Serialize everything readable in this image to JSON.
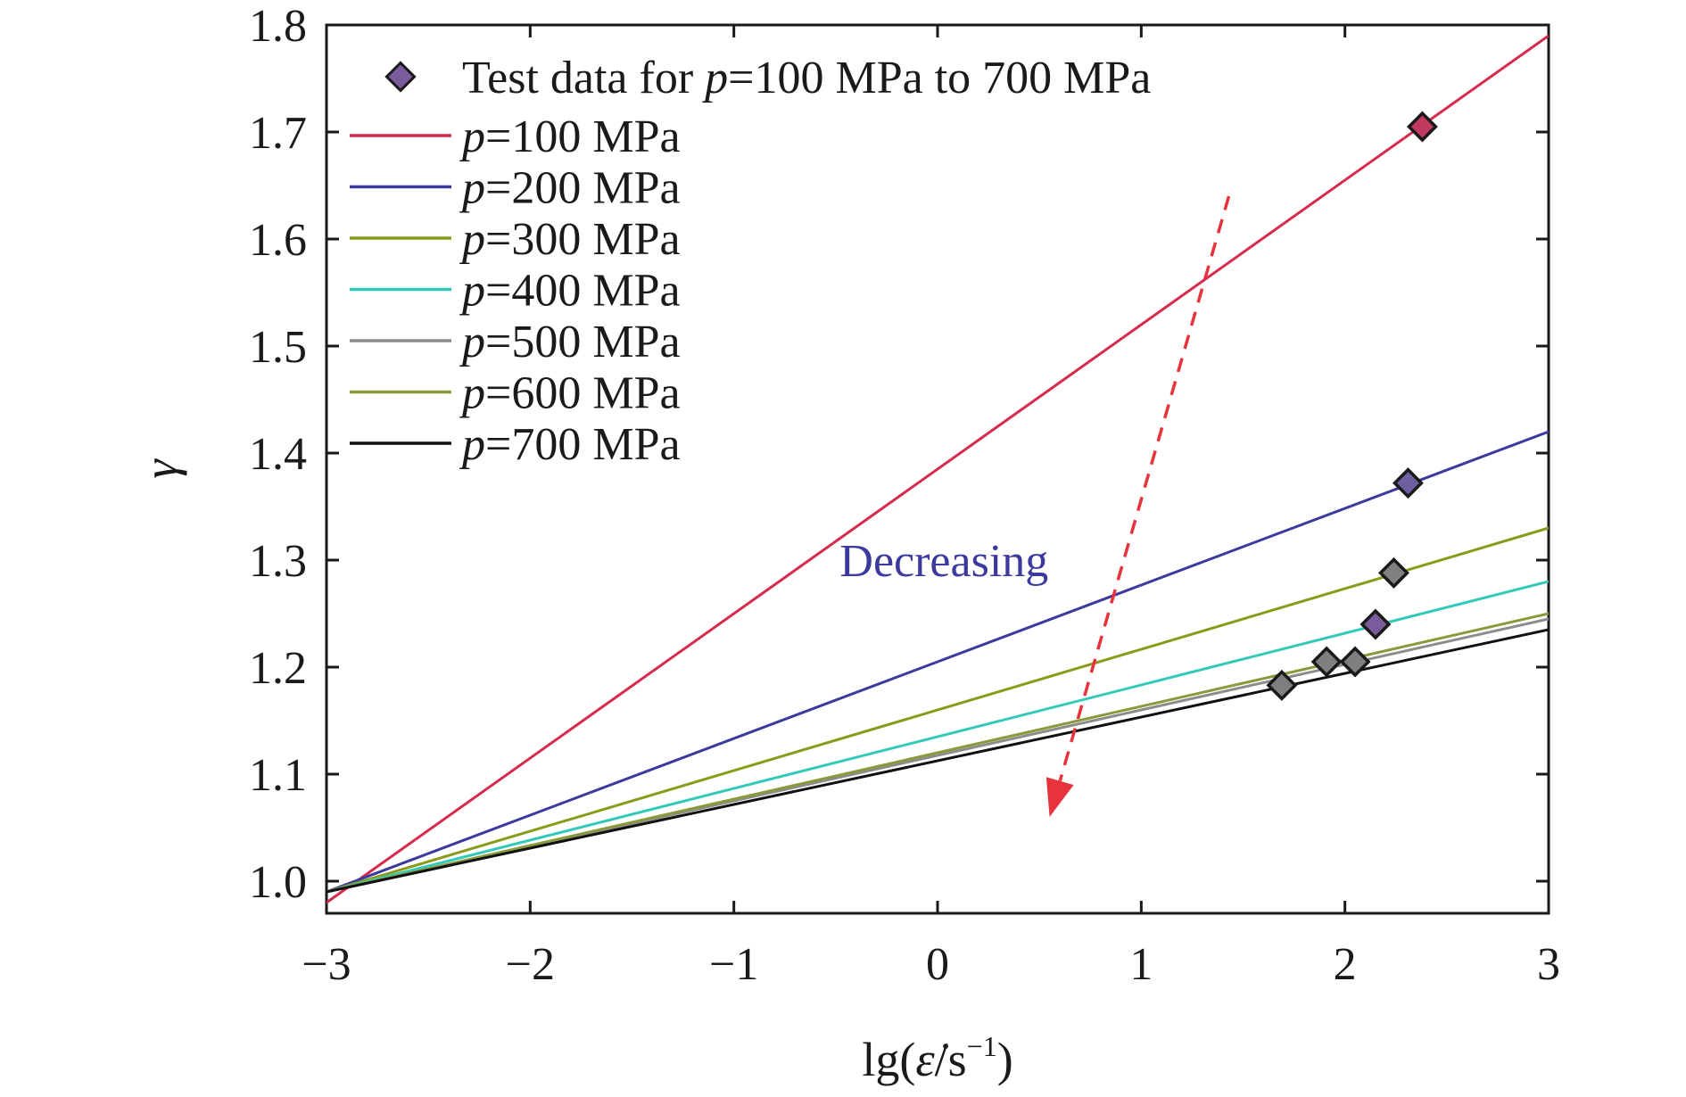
{
  "chart_data": {
    "type": "line",
    "xlabel": "lg(ε̇/s⁻¹)",
    "xlabel_parts": {
      "prefix": "lg(",
      "var": "ε̇",
      "unit": "/s",
      "exp": "−1",
      "suffix": ")"
    },
    "ylabel": "γ",
    "xlim": [
      -3,
      3
    ],
    "ylim": [
      0.97,
      1.8
    ],
    "x_ticks": [
      -3,
      -2,
      -1,
      0,
      1,
      2,
      3
    ],
    "x_tick_labels": [
      "−3",
      "−2",
      "−1",
      "0",
      "1",
      "2",
      "3"
    ],
    "y_ticks": [
      1.0,
      1.1,
      1.2,
      1.3,
      1.4,
      1.5,
      1.6,
      1.7,
      1.8
    ],
    "y_tick_labels": [
      "1.0",
      "1.1",
      "1.2",
      "1.3",
      "1.4",
      "1.5",
      "1.6",
      "1.7",
      "1.8"
    ],
    "grid": false,
    "legend_position": "top-left",
    "series": [
      {
        "name": "p=100 MPa",
        "p_value": "100",
        "color": "#d62b4e",
        "x": [
          -3,
          3
        ],
        "y": [
          0.98,
          1.79
        ]
      },
      {
        "name": "p=200 MPa",
        "p_value": "200",
        "color": "#3d3a9e",
        "x": [
          -3,
          3
        ],
        "y": [
          0.99,
          1.42
        ]
      },
      {
        "name": "p=300 MPa",
        "p_value": "300",
        "color": "#8a9a1a",
        "x": [
          -3,
          3
        ],
        "y": [
          0.99,
          1.33
        ]
      },
      {
        "name": "p=400 MPa",
        "p_value": "400",
        "color": "#33c9b8",
        "x": [
          -3,
          3
        ],
        "y": [
          0.99,
          1.28
        ]
      },
      {
        "name": "p=500 MPa",
        "p_value": "500",
        "color": "#8c8c8c",
        "x": [
          -3,
          3
        ],
        "y": [
          0.99,
          1.245
        ]
      },
      {
        "name": "p=600 MPa",
        "p_value": "600",
        "color": "#8a9a3a",
        "x": [
          -3,
          3
        ],
        "y": [
          0.99,
          1.25
        ]
      },
      {
        "name": "p=700 MPa",
        "p_value": "700",
        "color": "#111111",
        "x": [
          -3,
          3
        ],
        "y": [
          0.99,
          1.235
        ]
      }
    ],
    "test_data": {
      "name": "Test data for p=100 MPa to 700 MPa",
      "label_parts": {
        "prefix": "Test data for ",
        "var": "p",
        "suffix": "=100 MPa to 700 MPa"
      },
      "points": [
        {
          "x": 2.38,
          "y": 1.705,
          "fill": "#c0395e"
        },
        {
          "x": 2.31,
          "y": 1.372,
          "fill": "#6e5fa0"
        },
        {
          "x": 2.24,
          "y": 1.288,
          "fill": "#808080"
        },
        {
          "x": 2.15,
          "y": 1.24,
          "fill": "#7a5c9c"
        },
        {
          "x": 2.05,
          "y": 1.205,
          "fill": "#7f7f7f"
        },
        {
          "x": 1.91,
          "y": 1.205,
          "fill": "#7f7f7f"
        },
        {
          "x": 1.69,
          "y": 1.183,
          "fill": "#7f7f7f"
        }
      ]
    },
    "annotation": {
      "text": "Decreasing",
      "color": "#3d3a9e",
      "x": -0.48,
      "y": 1.3,
      "arrow": {
        "color": "#e8333c",
        "x_start": 1.43,
        "y_start": 1.64,
        "x_end": 0.55,
        "y_end": 1.06
      }
    }
  }
}
